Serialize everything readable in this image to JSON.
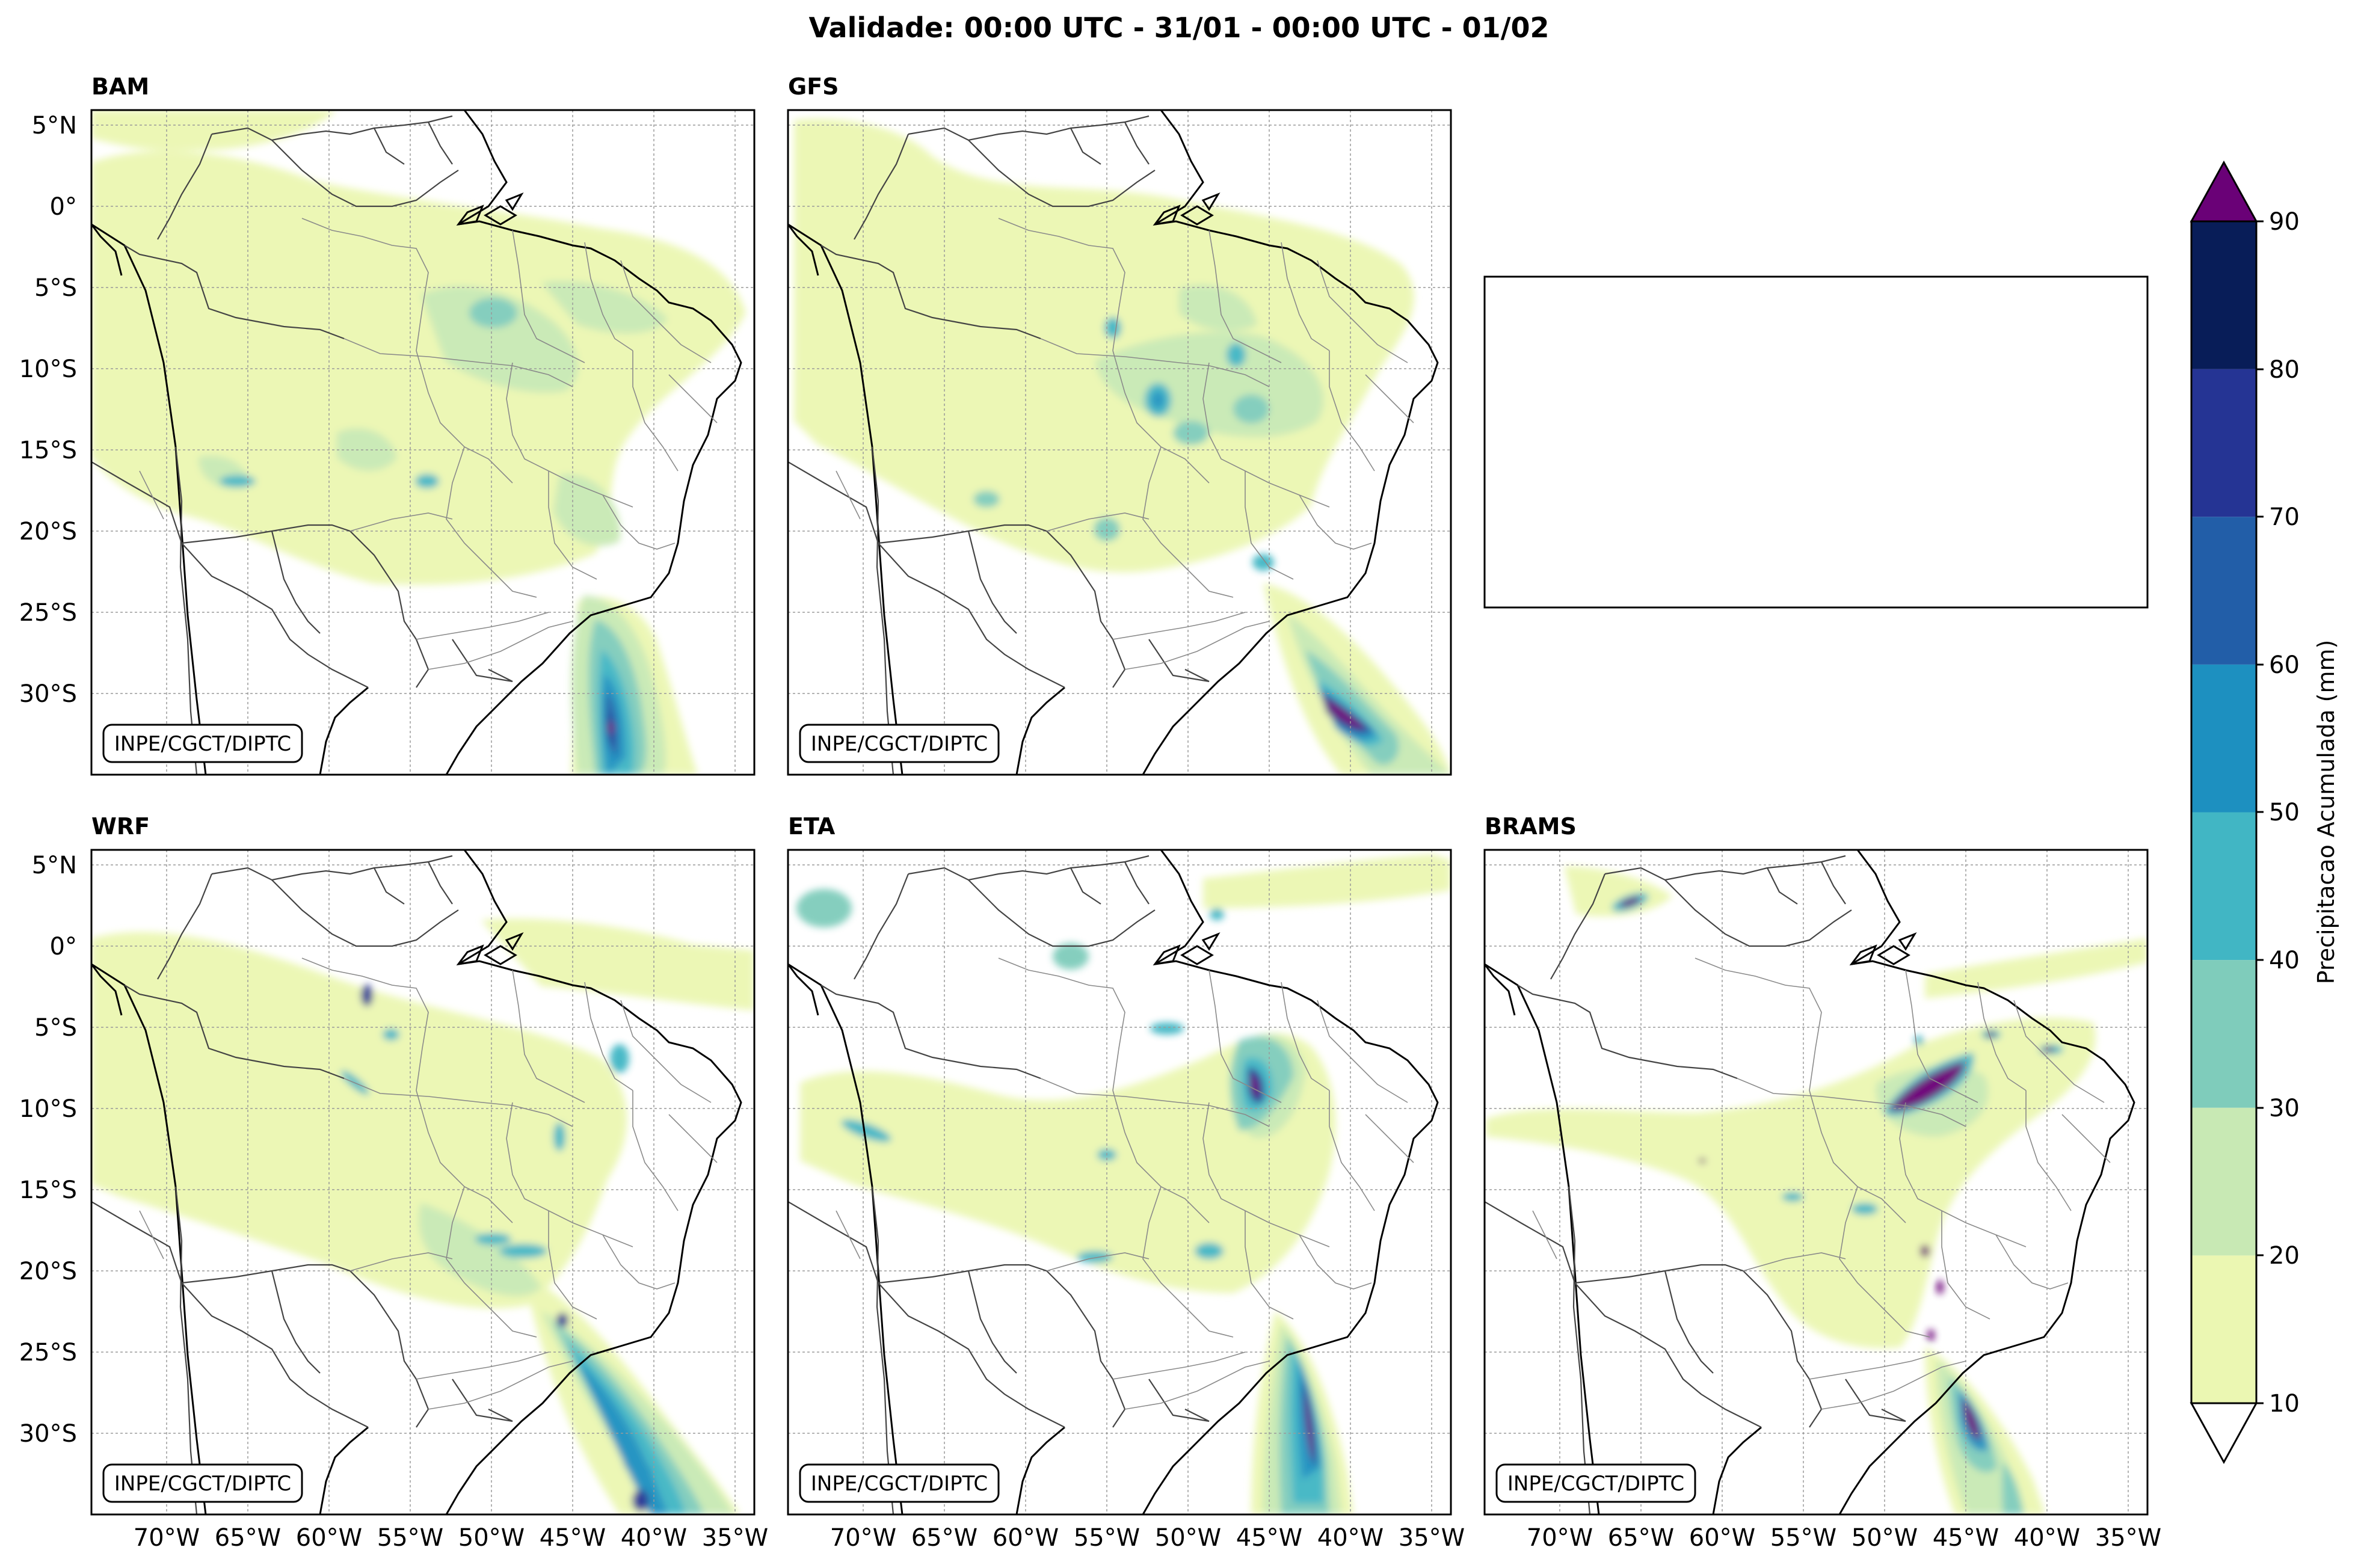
{
  "figure": {
    "title": "Validade: 00:00 UTC - 31/01 - 00:00 UTC - 01/02",
    "credit": "INPE/CGCT/DIPTC"
  },
  "panels": [
    {
      "id": "bam",
      "label": "BAM"
    },
    {
      "id": "gfs",
      "label": "GFS"
    },
    {
      "id": "wrf",
      "label": "WRF"
    },
    {
      "id": "eta",
      "label": "ETA"
    },
    {
      "id": "brams",
      "label": "BRAMS"
    }
  ],
  "axes": {
    "lat_ticks": [
      "5°N",
      "0°",
      "5°S",
      "10°S",
      "15°S",
      "20°S",
      "25°S",
      "30°S"
    ],
    "lon_ticks": [
      "70°W",
      "65°W",
      "60°W",
      "55°W",
      "50°W",
      "45°W",
      "40°W",
      "35°W"
    ]
  },
  "colorbar": {
    "label": "Precipitacao Acumulada (mm)",
    "levels": [
      10,
      20,
      30,
      40,
      50,
      60,
      70,
      80,
      90
    ],
    "tick_labels": [
      "10",
      "20",
      "30",
      "40",
      "50",
      "60",
      "70",
      "80",
      "90"
    ],
    "colors": [
      "#ebf7b2",
      "#c8e9b4",
      "#7fccbb",
      "#41b6c4",
      "#1d90c0",
      "#225ea8",
      "#253494",
      "#081d58"
    ],
    "over_color": "#6a0177",
    "under_color": "#ffffff"
  }
}
